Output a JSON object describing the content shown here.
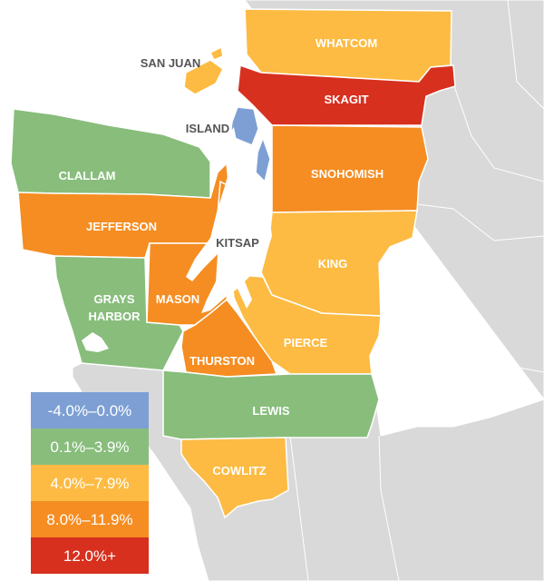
{
  "colors": {
    "background_land": "#d9d9d9",
    "water": "#ffffff",
    "border": "#ffffff"
  },
  "legend": [
    {
      "label": "-4.0%–0.0%",
      "color": "#7d9fd4"
    },
    {
      "label": "0.1%–3.9%",
      "color": "#88bd7c"
    },
    {
      "label": "4.0%–7.9%",
      "color": "#fdbb43"
    },
    {
      "label": "8.0%–11.9%",
      "color": "#f58d22"
    },
    {
      "label": "12.0%+",
      "color": "#d7301f"
    }
  ],
  "counties": {
    "whatcom": {
      "name": "WHATCOM",
      "bin": "4.0%–7.9%",
      "color": "#fdbb43"
    },
    "san_juan": {
      "name": "SAN JUAN",
      "bin": "4.0%–7.9%",
      "color": "#fdbb43"
    },
    "skagit": {
      "name": "SKAGIT",
      "bin": "12.0%+",
      "color": "#d7301f"
    },
    "island": {
      "name": "ISLAND",
      "bin": "-4.0%–0.0%",
      "color": "#7d9fd4"
    },
    "clallam": {
      "name": "CLALLAM",
      "bin": "0.1%–3.9%",
      "color": "#88bd7c"
    },
    "snohomish": {
      "name": "SNOHOMISH",
      "bin": "8.0%–11.9%",
      "color": "#f58d22"
    },
    "jefferson": {
      "name": "JEFFERSON",
      "bin": "8.0%–11.9%",
      "color": "#f58d22"
    },
    "kitsap": {
      "name": "KITSAP",
      "bin": "8.0%–11.9%",
      "color": "#f58d22"
    },
    "king": {
      "name": "KING",
      "bin": "4.0%–7.9%",
      "color": "#fdbb43"
    },
    "grays_harbor": {
      "name_line1": "GRAYS",
      "name_line2": "HARBOR",
      "bin": "0.1%–3.9%",
      "color": "#88bd7c"
    },
    "mason": {
      "name": "MASON",
      "bin": "8.0%–11.9%",
      "color": "#f58d22"
    },
    "pierce": {
      "name": "PIERCE",
      "bin": "4.0%–7.9%",
      "color": "#fdbb43"
    },
    "thurston": {
      "name": "THURSTON",
      "bin": "8.0%–11.9%",
      "color": "#f58d22"
    },
    "lewis": {
      "name": "LEWIS",
      "bin": "0.1%–3.9%",
      "color": "#88bd7c"
    },
    "cowlitz": {
      "name": "COWLITZ",
      "bin": "4.0%–7.9%",
      "color": "#fdbb43"
    }
  }
}
